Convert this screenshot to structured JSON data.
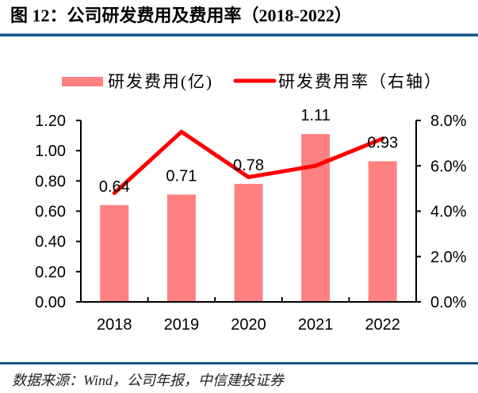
{
  "footer": {
    "source": "数据来源：Wind，公司年报，中信建投证券"
  },
  "legend": {
    "bar_label": "研发费用(亿)",
    "line_label": "研发费用率（右轴）"
  },
  "chart_data": {
    "type": "bar",
    "title": "图 12：公司研发费用及费用率（2018-2022）",
    "categories": [
      "2018",
      "2019",
      "2020",
      "2021",
      "2022"
    ],
    "series": [
      {
        "name": "研发费用(亿)",
        "type": "bar",
        "axis": "left",
        "color": "#ff8080",
        "values": [
          0.64,
          0.71,
          0.78,
          1.11,
          0.93
        ],
        "data_labels": [
          "0.64",
          "0.71",
          "0.78",
          "1.11",
          "0.93"
        ]
      },
      {
        "name": "研发费用率（右轴）",
        "type": "line",
        "axis": "right",
        "color": "#ff0000",
        "unit": "%",
        "values": [
          4.8,
          7.5,
          5.5,
          6.0,
          7.2
        ]
      }
    ],
    "xlabel": "",
    "ylabel": "",
    "y2label": "",
    "ylim": [
      0,
      1.2
    ],
    "y2lim": [
      0,
      8
    ],
    "y_ticks": [
      0,
      0.2,
      0.4,
      0.6,
      0.8,
      1.0,
      1.2
    ],
    "y_tick_labels": [
      "0.00",
      "0.20",
      "0.40",
      "0.60",
      "0.80",
      "1.00",
      "1.20"
    ],
    "y2_ticks": [
      0,
      2,
      4,
      6,
      8
    ],
    "y2_tick_labels": [
      "0.0%",
      "2.0%",
      "4.0%",
      "6.0%",
      "8.0%"
    ],
    "grid": false,
    "legend_position": "top"
  }
}
